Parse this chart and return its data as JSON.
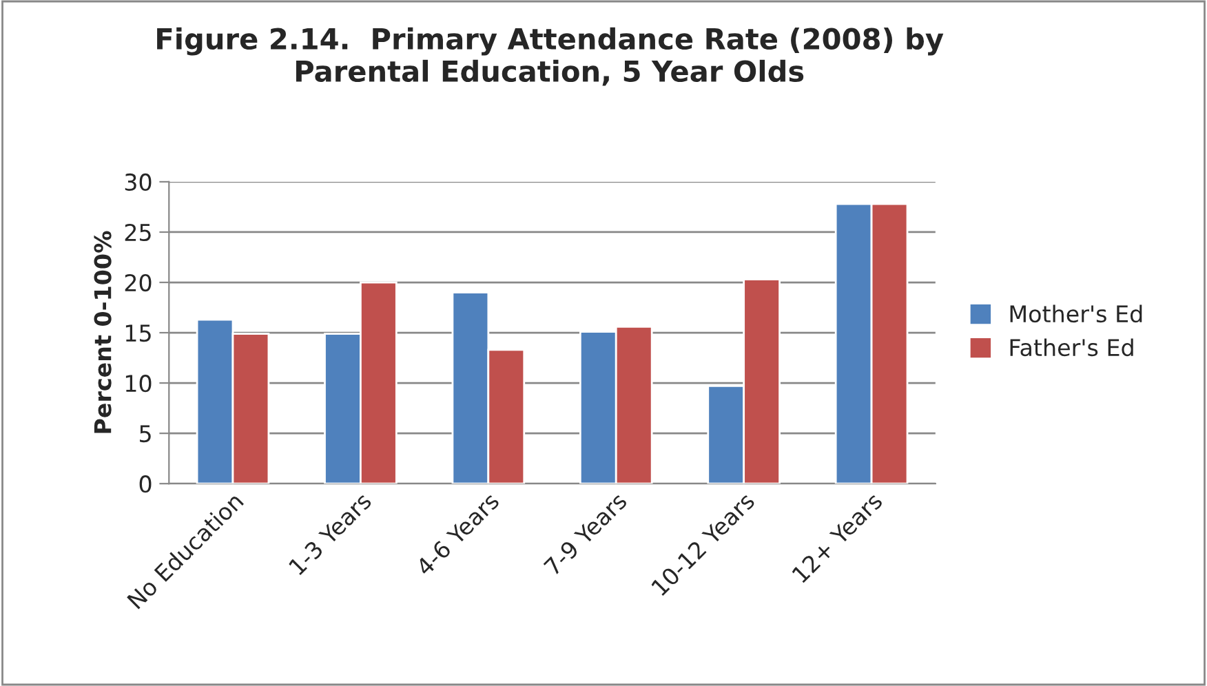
{
  "chart_data": {
    "type": "bar",
    "title": "Figure 2.14.  Primary Attendance Rate (2008) by\nParental Education, 5 Year Olds",
    "ylabel": "Percent 0-100%",
    "categories": [
      "No Education",
      "1-3 Years",
      "4-6 Years",
      "7-9 Years",
      "10-12 Years",
      "12+ Years"
    ],
    "series": [
      {
        "name": "Mother's Ed",
        "color": "#4f81bd",
        "values": [
          16.3,
          14.9,
          19.0,
          15.1,
          9.7,
          27.8
        ]
      },
      {
        "name": "Father's Ed",
        "color": "#c0504d",
        "values": [
          14.9,
          20.0,
          13.3,
          15.6,
          20.3,
          27.8
        ]
      }
    ],
    "ylim": [
      0,
      30
    ],
    "yticks": [
      0,
      5,
      10,
      15,
      20,
      25,
      30
    ],
    "grid": "y",
    "legend": "right"
  }
}
